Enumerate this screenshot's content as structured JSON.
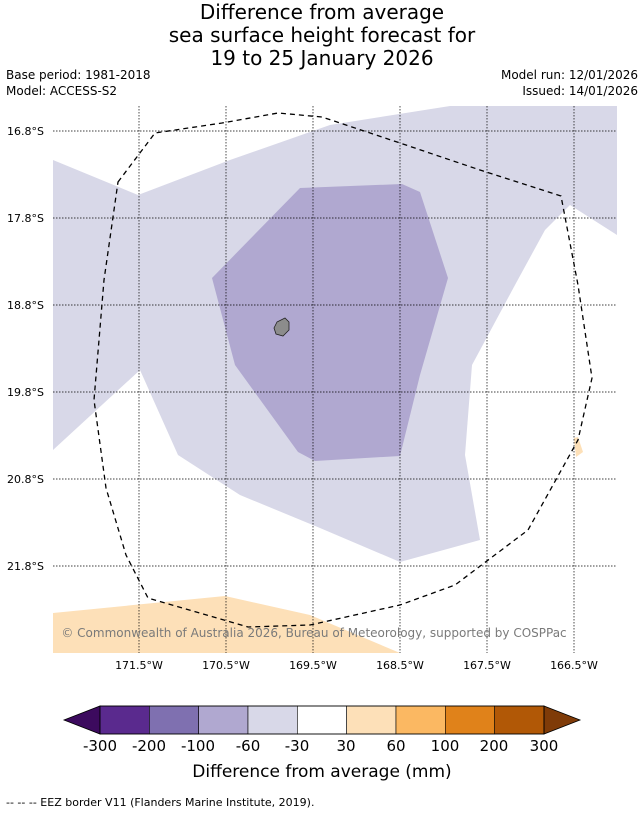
{
  "title": {
    "line1": "Difference from average",
    "line2": "sea surface height forecast for",
    "line3": "19 to 25 January 2026"
  },
  "meta": {
    "base_period": "Base period: 1981-2018",
    "model": "Model: ACCESS-S2",
    "model_run": "Model run: 12/01/2026",
    "issued": "Issued: 14/01/2026"
  },
  "map": {
    "lat_labels": [
      "16.8°S",
      "17.8°S",
      "18.8°S",
      "19.8°S",
      "20.8°S",
      "21.8°S"
    ],
    "lon_labels": [
      "171.5°W",
      "170.5°W",
      "169.5°W",
      "168.5°W",
      "167.5°W",
      "166.5°W"
    ],
    "copyright": "© Commonwealth of Australia 2026, Bureau of Meteorology, supported by COSPPac",
    "colors": {
      "light_purple": "#d8d8e8",
      "mid_purple": "#b0a8d0",
      "light_orange": "#fde0b8",
      "land": "#8c8c8c"
    }
  },
  "colorbar": {
    "labels": [
      "-300",
      "-200",
      "-100",
      "-60",
      "-30",
      "30",
      "60",
      "100",
      "200",
      "300"
    ],
    "colors": [
      "#5a2a8e",
      "#7f70b0",
      "#b0a8d0",
      "#d8d8e8",
      "#ffffff",
      "#fde0b8",
      "#fbb862",
      "#e0821a",
      "#b15806"
    ],
    "under_color": "#3c0a5e",
    "over_color": "#7f3b08",
    "title": "Difference from average (mm)"
  },
  "footnote": "--  --  -- EEZ border V11 (Flanders Marine Institute, 2019)."
}
